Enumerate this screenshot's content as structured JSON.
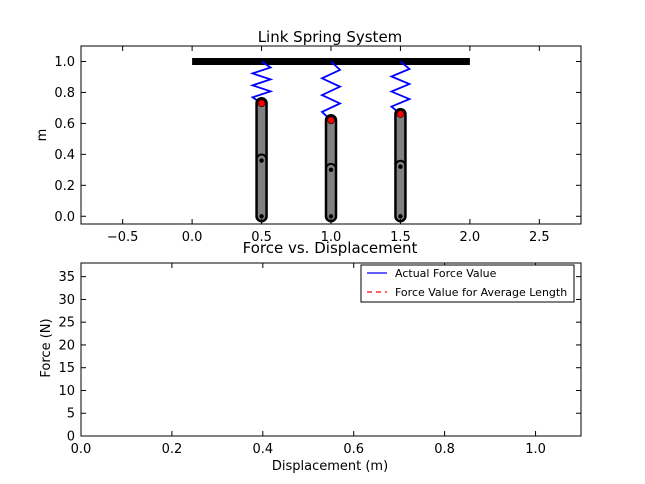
{
  "colors": {
    "spring": "#0000ff",
    "link_fill": "#808080",
    "link_stroke": "#000000",
    "mass_marker": "#ff0000",
    "bar": "#000000",
    "legend_actual": "#0000ff",
    "legend_average": "#ff0000"
  },
  "chart_data": [
    {
      "type": "line",
      "title": "Link Spring System",
      "xlabel": "",
      "ylabel": "m",
      "xlim": [
        -0.8,
        2.8
      ],
      "ylim": [
        -0.05,
        1.1
      ],
      "xticks": [
        -0.5,
        0.0,
        0.5,
        1.0,
        1.5,
        2.0,
        2.5
      ],
      "xtick_labels": [
        "−0.5",
        "0.0",
        "0.5",
        "1.0",
        "1.5",
        "2.0",
        "2.5"
      ],
      "yticks": [
        0.0,
        0.2,
        0.4,
        0.6,
        0.8,
        1.0
      ],
      "ytick_labels": [
        "0.0",
        "0.2",
        "0.4",
        "0.6",
        "0.8",
        "1.0"
      ],
      "grid": false,
      "support_bar": {
        "x": [
          0.0,
          2.0
        ],
        "y": 1.0
      },
      "links": [
        {
          "x": 0.5,
          "y_bottom": 0.0,
          "y_top": 0.73,
          "y_mid": 0.36,
          "mass_y": 0.73,
          "spring_top": 1.0
        },
        {
          "x": 1.0,
          "y_bottom": 0.0,
          "y_top": 0.62,
          "y_mid": 0.3,
          "mass_y": 0.62,
          "spring_top": 1.0
        },
        {
          "x": 1.5,
          "y_bottom": 0.0,
          "y_top": 0.66,
          "y_mid": 0.32,
          "mass_y": 0.66,
          "spring_top": 1.0
        }
      ]
    },
    {
      "type": "line",
      "title": "Force vs. Displacement",
      "xlabel": "Displacement (m)",
      "ylabel": "Force (N)",
      "xlim": [
        0.0,
        1.1
      ],
      "ylim": [
        0,
        38
      ],
      "xticks": [
        0.0,
        0.2,
        0.4,
        0.6,
        0.8,
        1.0
      ],
      "xtick_labels": [
        "0.0",
        "0.2",
        "0.4",
        "0.6",
        "0.8",
        "1.0"
      ],
      "yticks": [
        0,
        5,
        10,
        15,
        20,
        25,
        30,
        35
      ],
      "ytick_labels": [
        "0",
        "5",
        "10",
        "15",
        "20",
        "25",
        "30",
        "35"
      ],
      "grid": false,
      "legend_position": "top-right",
      "series": [
        {
          "name": "Actual Force Value",
          "style": "solid",
          "x": [],
          "y": []
        },
        {
          "name": "Force Value for Average Length",
          "style": "dashed",
          "x": [],
          "y": []
        }
      ]
    }
  ]
}
